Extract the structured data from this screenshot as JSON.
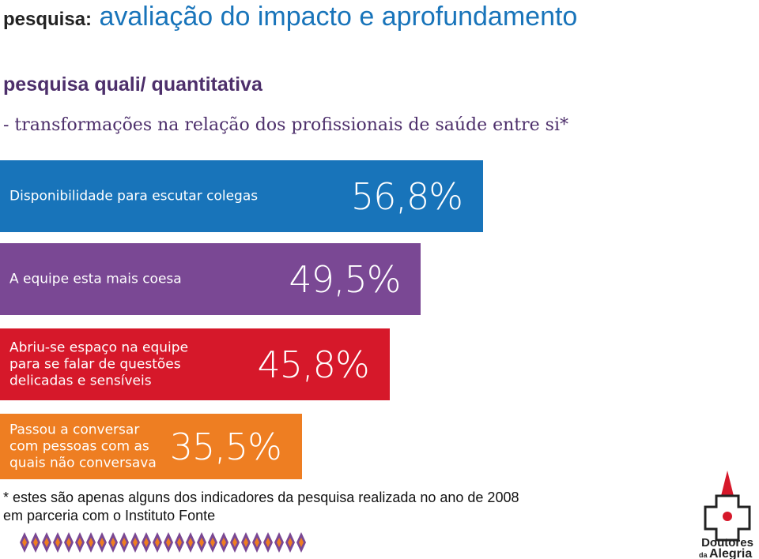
{
  "chart_data": {
    "type": "bar",
    "orientation": "horizontal",
    "title_prefix": "pesquisa:",
    "title": "avaliação do impacto e aprofundamento",
    "subtitle": "pesquisa quali/ quantitativa",
    "heading": "- transformações na relação dos profissionais de saúde entre si*",
    "categories": [
      "Disponibilidade para escutar colegas",
      "A equipe esta mais coesa",
      "Abriu-se espaço na equipe para se falar de questões delicadas e sensíveis",
      "Passou a conversar com pessoas com as quais não conversava"
    ],
    "values": [
      56.8,
      49.5,
      45.8,
      35.5
    ],
    "value_labels": [
      "56,8%",
      "49,5%",
      "45,8%",
      "35,5%"
    ],
    "colors": [
      "#1874ba",
      "#7a4894",
      "#d6182a",
      "#ee7e22"
    ],
    "footnote": [
      "* estes são apenas alguns dos indicadores da pesquisa realizada no ano de 2008",
      "em parceria com o Instituto Fonte"
    ],
    "logo": [
      "Doutores",
      "da",
      "Alegria"
    ]
  }
}
